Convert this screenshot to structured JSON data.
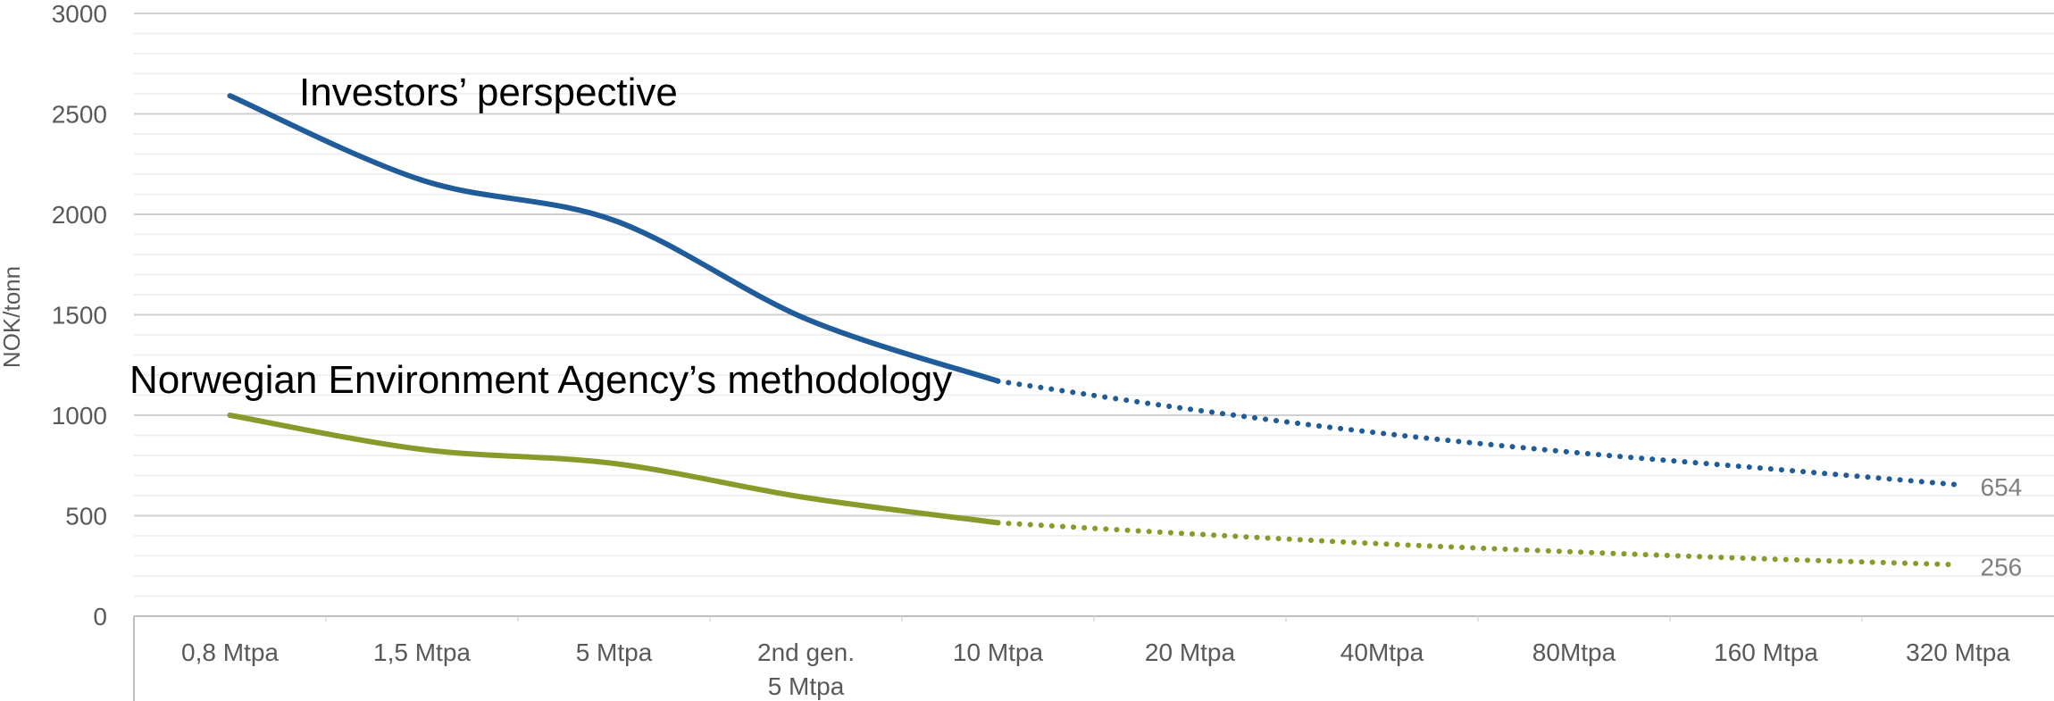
{
  "chart_data": {
    "type": "line",
    "title": "",
    "xlabel": "",
    "ylabel": "NOK/tonn",
    "ylim": [
      0,
      3000
    ],
    "yticks": [
      "0",
      "500",
      "1000",
      "1500",
      "2000",
      "2500",
      "3000"
    ],
    "categories": [
      "0,8 Mtpa",
      "1,5 Mtpa",
      "5 Mtpa",
      "2nd gen.\n5 Mtpa",
      "10 Mtpa",
      "20 Mtpa",
      "40Mtpa",
      "80Mtpa",
      "160 Mtpa",
      "320 Mtpa"
    ],
    "grid": true,
    "legend": "none",
    "series": [
      {
        "name": "Investors’ perspective",
        "color": "#1f5c99",
        "values": [
          2590,
          2170,
          1970,
          1480,
          1170,
          1030,
          910,
          815,
          735,
          654
        ],
        "solid_until_index": 4,
        "end_label": "654"
      },
      {
        "name": "Norwegian Environment Agency’s methodology",
        "color": "#8a9a2a",
        "values": [
          1000,
          830,
          760,
          590,
          465,
          410,
          360,
          320,
          285,
          256
        ],
        "solid_until_index": 4,
        "end_label": "256"
      }
    ]
  }
}
